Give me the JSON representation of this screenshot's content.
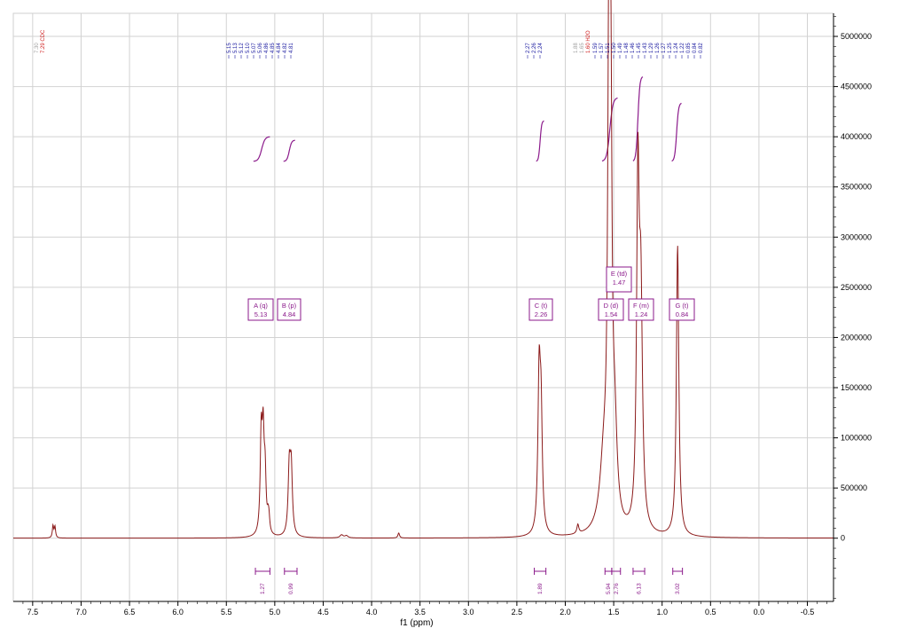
{
  "chart_data": {
    "type": "line",
    "title": "",
    "xlabel": "f1 (ppm)",
    "ylabel": "",
    "xlim": [
      7.7,
      -0.77
    ],
    "ylim": [
      -630000,
      5230000
    ],
    "x_reversed": true,
    "grid": true,
    "x_ticks": [
      7.5,
      7.0,
      6.5,
      6.0,
      5.5,
      5.0,
      4.5,
      4.0,
      3.5,
      3.0,
      2.5,
      2.0,
      1.5,
      1.0,
      0.5,
      0.0,
      -0.5
    ],
    "x_tick_labels": [
      "7.5",
      "7.0",
      "6.5",
      "6.0",
      "5.5",
      "5.0",
      "4.5",
      "4.0",
      "3.5",
      "3.0",
      "2.5",
      "2.0",
      "1.5",
      "1.0",
      "0.5",
      "0.0",
      "-0.5"
    ],
    "y_ticks": [
      5000000,
      4500000,
      4000000,
      3500000,
      3000000,
      2500000,
      2000000,
      1500000,
      1000000,
      500000,
      0
    ],
    "y_tick_labels": [
      "5000000",
      "4500000",
      "4000000",
      "3500000",
      "3000000",
      "2500000",
      "2000000",
      "1500000",
      "1000000",
      "500000",
      "0"
    ],
    "series": [
      {
        "color": "#8b1a1a",
        "peaks": [
          {
            "ppm": 7.29,
            "height": 120000,
            "width": 0.008
          },
          {
            "ppm": 7.27,
            "height": 110000,
            "width": 0.008
          },
          {
            "ppm": 5.14,
            "height": 950000,
            "width": 0.012
          },
          {
            "ppm": 5.12,
            "height": 900000,
            "width": 0.012
          },
          {
            "ppm": 5.1,
            "height": 550000,
            "width": 0.012
          },
          {
            "ppm": 5.07,
            "height": 120000,
            "width": 0.01
          },
          {
            "ppm": 5.06,
            "height": 130000,
            "width": 0.01
          },
          {
            "ppm": 4.85,
            "height": 650000,
            "width": 0.014
          },
          {
            "ppm": 4.83,
            "height": 640000,
            "width": 0.014
          },
          {
            "ppm": 4.31,
            "height": 30000,
            "width": 0.02
          },
          {
            "ppm": 4.26,
            "height": 22000,
            "width": 0.02
          },
          {
            "ppm": 3.72,
            "height": 50000,
            "width": 0.01
          },
          {
            "ppm": 2.27,
            "height": 1500000,
            "width": 0.015
          },
          {
            "ppm": 2.25,
            "height": 1100000,
            "width": 0.015
          },
          {
            "ppm": 1.87,
            "height": 90000,
            "width": 0.012
          },
          {
            "ppm": 1.6,
            "height": 700000,
            "width": 0.05
          },
          {
            "ppm": 1.55,
            "height": 4300000,
            "width": 0.014
          },
          {
            "ppm": 1.53,
            "height": 3600000,
            "width": 0.014
          },
          {
            "ppm": 1.49,
            "height": 900000,
            "width": 0.03
          },
          {
            "ppm": 1.25,
            "height": 3300000,
            "width": 0.016
          },
          {
            "ppm": 1.22,
            "height": 2200000,
            "width": 0.02
          },
          {
            "ppm": 0.84,
            "height": 2900000,
            "width": 0.015
          }
        ]
      }
    ],
    "peak_labels": {
      "blue": [
        "5.15",
        "5.13",
        "5.12",
        "5.10",
        "5.07",
        "5.06",
        "4.86",
        "4.85",
        "4.84",
        "4.82",
        "4.81",
        "2.27",
        "2.26",
        "2.24",
        "1.59",
        "1.57",
        "1.51",
        "1.50",
        "1.49",
        "1.48",
        "1.46",
        "1.45",
        "1.43",
        "1.29",
        "1.26",
        "1.27",
        "1.25",
        "1.24",
        "1.22",
        "0.85",
        "0.84",
        "0.82"
      ],
      "red": [
        "7.29 CDC"
      ],
      "red_water": "1.60 H2O",
      "gray": [
        "7.30",
        "1.88",
        "1.65"
      ]
    },
    "multiplets": [
      {
        "label": "A (q)",
        "shift": "5.13"
      },
      {
        "label": "B (p)",
        "shift": "4.84"
      },
      {
        "label": "C (t)",
        "shift": "2.26"
      },
      {
        "label": "D (d)",
        "shift": "1.54"
      },
      {
        "label": "E (td)",
        "shift": "1.47"
      },
      {
        "label": "F (m)",
        "shift": "1.24"
      },
      {
        "label": "G (t)",
        "shift": "0.84"
      }
    ],
    "integrals": [
      {
        "from": 5.2,
        "to": 5.05,
        "value": "1.27"
      },
      {
        "from": 4.9,
        "to": 4.77,
        "value": "0.99"
      },
      {
        "from": 2.32,
        "to": 2.2,
        "value": "1.89"
      },
      {
        "from": 1.59,
        "to": 1.52,
        "value": "5.94"
      },
      {
        "from": 1.52,
        "to": 1.43,
        "value": "2.76"
      },
      {
        "from": 1.3,
        "to": 1.18,
        "value": "6.13"
      },
      {
        "from": 0.89,
        "to": 0.79,
        "value": "3.02"
      }
    ]
  }
}
